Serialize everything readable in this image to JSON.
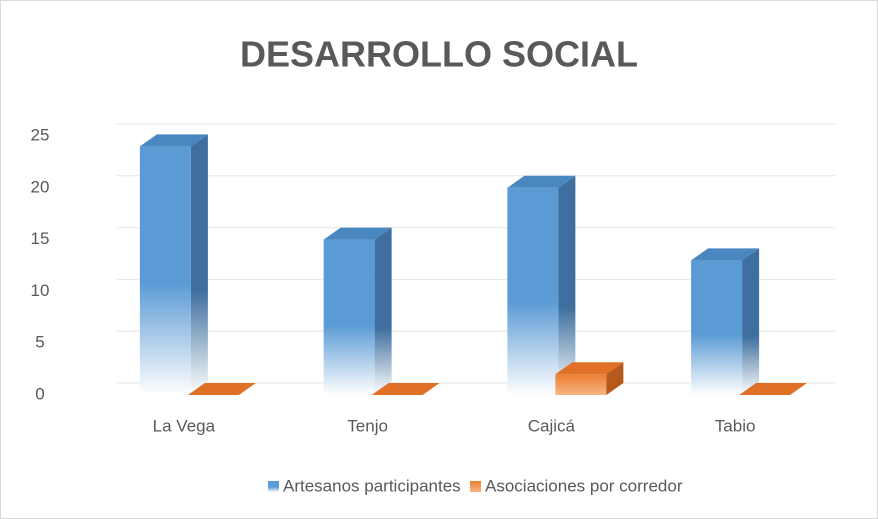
{
  "chart_data": {
    "type": "bar3d",
    "title": "DESARROLLO SOCIAL",
    "categories": [
      "La Vega",
      "Tenjo",
      "Cajicá",
      "Tabio"
    ],
    "series": [
      {
        "name": "Artesanos participantes",
        "color": "#5b9bd5",
        "values": [
          24,
          15,
          20,
          13
        ]
      },
      {
        "name": "Asociaciones por corredor",
        "color": "#ed7d31",
        "values": [
          0,
          0,
          2,
          0
        ]
      }
    ],
    "ylim": [
      0,
      25
    ],
    "yticks": [
      0,
      5,
      10,
      15,
      20,
      25
    ],
    "grid": true,
    "legend": "bottom"
  }
}
